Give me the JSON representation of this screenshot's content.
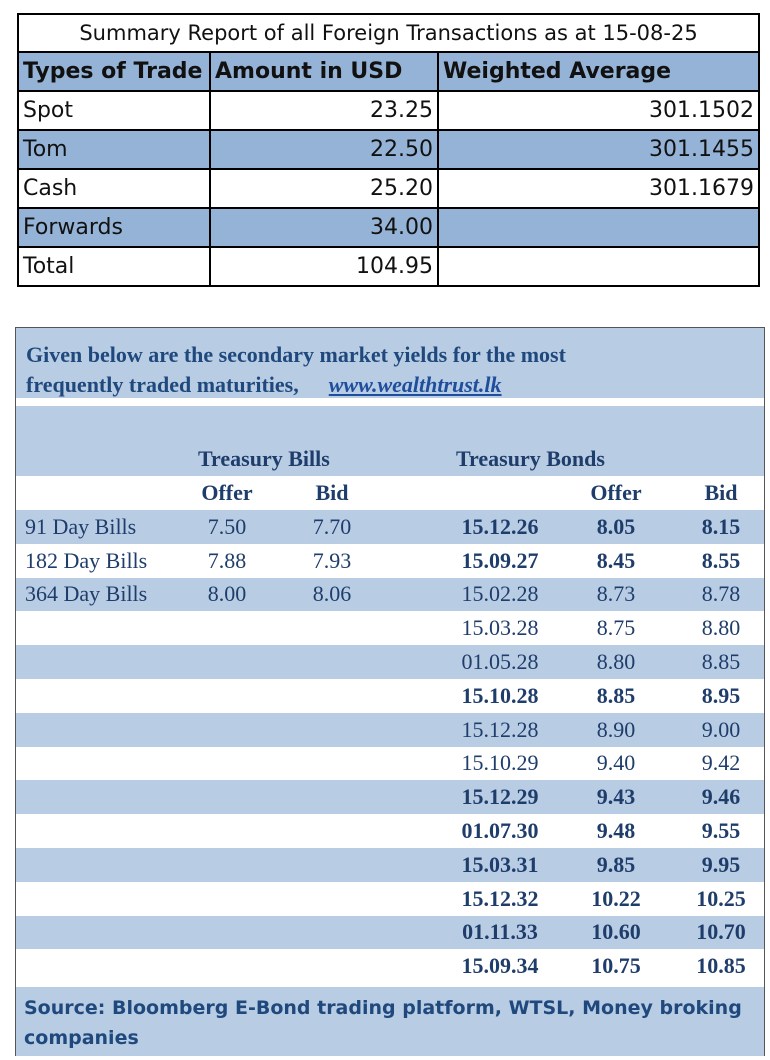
{
  "fx_summary": {
    "title": "Summary Report of all Foreign Transactions as at 15-08-25",
    "headers": [
      "Types of Trade",
      "Amount in USD",
      "Weighted Average"
    ],
    "rows": [
      {
        "type": "Spot",
        "amount": "23.25",
        "weighted_avg": "301.1502"
      },
      {
        "type": "Tom",
        "amount": "22.50",
        "weighted_avg": "301.1455"
      },
      {
        "type": "Cash",
        "amount": "25.20",
        "weighted_avg": "301.1679"
      },
      {
        "type": "Forwards",
        "amount": "34.00",
        "weighted_avg": ""
      },
      {
        "type": "Total",
        "amount": "104.95",
        "weighted_avg": ""
      }
    ],
    "colors": {
      "header": "#95b3d7",
      "border": "#000000"
    }
  },
  "yields": {
    "intro_line1": "Given below are the secondary market yields for the most",
    "intro_line2": "frequently traded maturities,",
    "link": "www.wealthtrust.lk",
    "bills_title": "Treasury Bills",
    "bonds_title": "Treasury Bonds",
    "offer_label": "Offer",
    "bid_label": "Bid",
    "bills": [
      {
        "label": "91 Day Bills",
        "offer": "7.50",
        "bid": "7.70"
      },
      {
        "label": "182 Day Bills",
        "offer": "7.88",
        "bid": "7.93"
      },
      {
        "label": "364 Day Bills",
        "offer": "8.00",
        "bid": "8.06"
      }
    ],
    "bonds": [
      {
        "maturity": "15.12.26",
        "offer": "8.05",
        "bid": "8.15",
        "bold": true
      },
      {
        "maturity": "15.09.27",
        "offer": "8.45",
        "bid": "8.55",
        "bold": true
      },
      {
        "maturity": "15.02.28",
        "offer": "8.73",
        "bid": "8.78",
        "bold": false
      },
      {
        "maturity": "15.03.28",
        "offer": "8.75",
        "bid": "8.80",
        "bold": false
      },
      {
        "maturity": "01.05.28",
        "offer": "8.80",
        "bid": "8.85",
        "bold": false
      },
      {
        "maturity": "15.10.28",
        "offer": "8.85",
        "bid": "8.95",
        "bold": true
      },
      {
        "maturity": "15.12.28",
        "offer": "8.90",
        "bid": "9.00",
        "bold": false
      },
      {
        "maturity": "15.10.29",
        "offer": "9.40",
        "bid": "9.42",
        "bold": false
      },
      {
        "maturity": "15.12.29",
        "offer": "9.43",
        "bid": "9.46",
        "bold": true
      },
      {
        "maturity": "01.07.30",
        "offer": "9.48",
        "bid": "9.55",
        "bold": true
      },
      {
        "maturity": "15.03.31",
        "offer": "9.85",
        "bid": "9.95",
        "bold": true
      },
      {
        "maturity": "15.12.32",
        "offer": "10.22",
        "bid": "10.25",
        "bold": true
      },
      {
        "maturity": "01.11.33",
        "offer": "10.60",
        "bid": "10.70",
        "bold": true
      },
      {
        "maturity": "15.09.34",
        "offer": "10.75",
        "bid": "10.85",
        "bold": true
      }
    ],
    "source": "Source: Bloomberg E-Bond trading platform, WTSL, Money broking companies",
    "colors": {
      "band": "#b8cce4",
      "text": "#1f3d6b"
    }
  }
}
